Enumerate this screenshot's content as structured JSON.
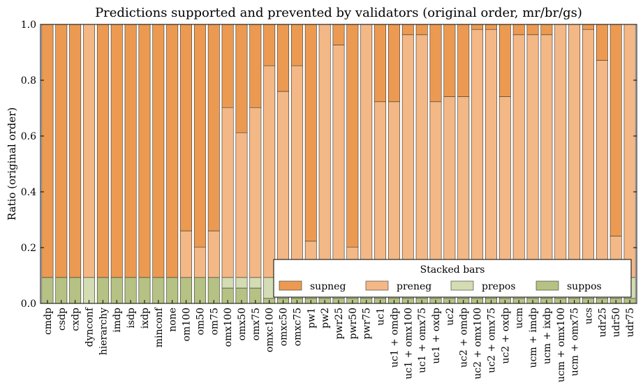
{
  "chart_data": {
    "type": "bar",
    "stacked": true,
    "title": "Predictions supported and prevented by validators (original order, mr/br/gs)",
    "xlabel": "",
    "ylabel": "Ratio (original order)",
    "ylim": [
      0,
      1.0
    ],
    "yticks": [
      "0.0",
      "0.2",
      "0.4",
      "0.6",
      "0.8",
      "1.0"
    ],
    "grid": false,
    "legend": {
      "title": "Stacked bars",
      "placement": "lower-right",
      "columns": 4
    },
    "categories": [
      "cmdp",
      "csdp",
      "cxdp",
      "dynconf",
      "hierarchy",
      "imdp",
      "isdp",
      "ixdp",
      "minconf",
      "none",
      "om100",
      "om50",
      "om75",
      "omx100",
      "omx50",
      "omx75",
      "omxc100",
      "omxc50",
      "omxc75",
      "pw1",
      "pw2",
      "pwr25",
      "pwr50",
      "pwr75",
      "uc1",
      "uc1 + omdp",
      "uc1 + omx100",
      "uc1 + omx75",
      "uc1 + oxdp",
      "uc2",
      "uc2 + omdp",
      "uc2 + omx100",
      "uc2 + omx75",
      "uc2 + oxdp",
      "ucm",
      "ucm + imdp",
      "ucm + ixdp",
      "ucm + omx100",
      "ucm + omx75",
      "ucs",
      "udr25",
      "udr50",
      "udr75"
    ],
    "series": [
      {
        "name": "suppos",
        "color": "#b5c283",
        "values": [
          0.093,
          0.093,
          0.093,
          0.0,
          0.093,
          0.093,
          0.093,
          0.093,
          0.093,
          0.093,
          0.093,
          0.093,
          0.093,
          0.055,
          0.055,
          0.055,
          0.018,
          0.018,
          0.018,
          0.018,
          0.018,
          0.018,
          0.018,
          0.018,
          0.018,
          0.018,
          0.018,
          0.018,
          0.018,
          0.018,
          0.018,
          0.018,
          0.018,
          0.018,
          0.018,
          0.018,
          0.018,
          0.018,
          0.018,
          0.018,
          0.018,
          0.018,
          0.018
        ]
      },
      {
        "name": "prepos",
        "color": "#d3dcb2",
        "values": [
          0.0,
          0.0,
          0.0,
          0.093,
          0.0,
          0.0,
          0.0,
          0.0,
          0.0,
          0.0,
          0.0,
          0.0,
          0.0,
          0.038,
          0.038,
          0.038,
          0.075,
          0.075,
          0.075,
          0.075,
          0.075,
          0.075,
          0.075,
          0.075,
          0.075,
          0.075,
          0.075,
          0.075,
          0.075,
          0.075,
          0.075,
          0.075,
          0.075,
          0.075,
          0.075,
          0.075,
          0.075,
          0.075,
          0.075,
          0.075,
          0.075,
          0.075,
          0.075
        ]
      },
      {
        "name": "preneg",
        "color": "#f3b886",
        "values": [
          0.0,
          0.0,
          0.0,
          0.907,
          0.0,
          0.0,
          0.0,
          0.0,
          0.0,
          0.0,
          0.167,
          0.109,
          0.167,
          0.609,
          0.519,
          0.609,
          0.759,
          0.667,
          0.759,
          0.13,
          0.907,
          0.833,
          0.109,
          0.907,
          0.63,
          0.63,
          0.87,
          0.87,
          0.63,
          0.648,
          0.648,
          0.889,
          0.889,
          0.648,
          0.87,
          0.87,
          0.87,
          0.907,
          0.907,
          0.889,
          0.778,
          0.148,
          0.907
        ]
      },
      {
        "name": "supneg",
        "color": "#ec9a52",
        "values": [
          0.907,
          0.907,
          0.907,
          0.0,
          0.907,
          0.907,
          0.907,
          0.907,
          0.907,
          0.907,
          0.74,
          0.798,
          0.74,
          0.298,
          0.388,
          0.298,
          0.148,
          0.24,
          0.148,
          0.777,
          0.0,
          0.074,
          0.798,
          0.0,
          0.277,
          0.277,
          0.037,
          0.037,
          0.277,
          0.259,
          0.259,
          0.018,
          0.018,
          0.259,
          0.037,
          0.037,
          0.037,
          0.0,
          0.0,
          0.018,
          0.129,
          0.759,
          0.0
        ]
      }
    ],
    "legend_order": [
      "supneg",
      "preneg",
      "prepos",
      "suppos"
    ]
  }
}
